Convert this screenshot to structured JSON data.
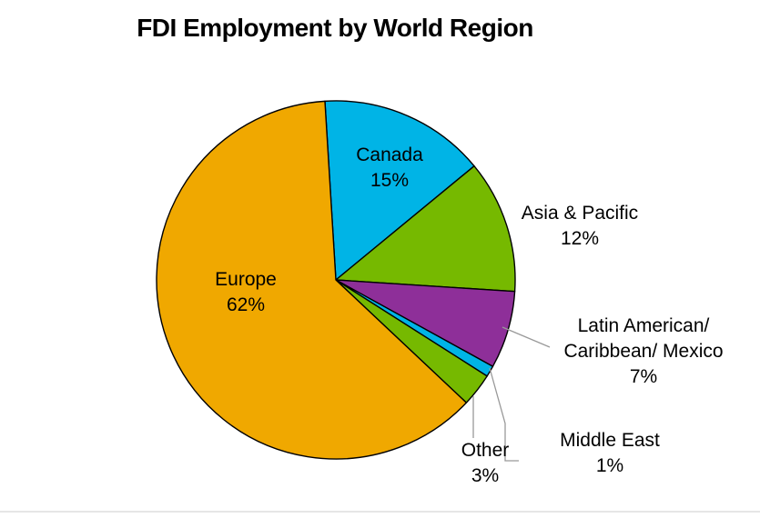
{
  "chart_data": {
    "type": "pie",
    "title": "FDI Employment by World Region",
    "slices": [
      {
        "name": "Canada",
        "label_lines": [
          "Canada"
        ],
        "value": 15,
        "value_label": "15%",
        "color": "#00B4E6"
      },
      {
        "name": "Asia & Pacific",
        "label_lines": [
          "Asia & Pacific"
        ],
        "value": 12,
        "value_label": "12%",
        "color": "#76B900"
      },
      {
        "name": "Latin American/ Caribbean/ Mexico",
        "label_lines": [
          "Latin American/",
          "Caribbean/ Mexico"
        ],
        "value": 7,
        "value_label": "7%",
        "color": "#8E2F99"
      },
      {
        "name": "Middle East",
        "label_lines": [
          "Middle East"
        ],
        "value": 1,
        "value_label": "1%",
        "color": "#00B4E6"
      },
      {
        "name": "Other",
        "label_lines": [
          "Other"
        ],
        "value": 3,
        "value_label": "3%",
        "color": "#76B900"
      },
      {
        "name": "Europe",
        "label_lines": [
          "Europe"
        ],
        "value": 62,
        "value_label": "62%",
        "color": "#F0A800"
      }
    ],
    "start_angle_deg": -3.5,
    "direction": "clockwise",
    "legend": "none"
  }
}
